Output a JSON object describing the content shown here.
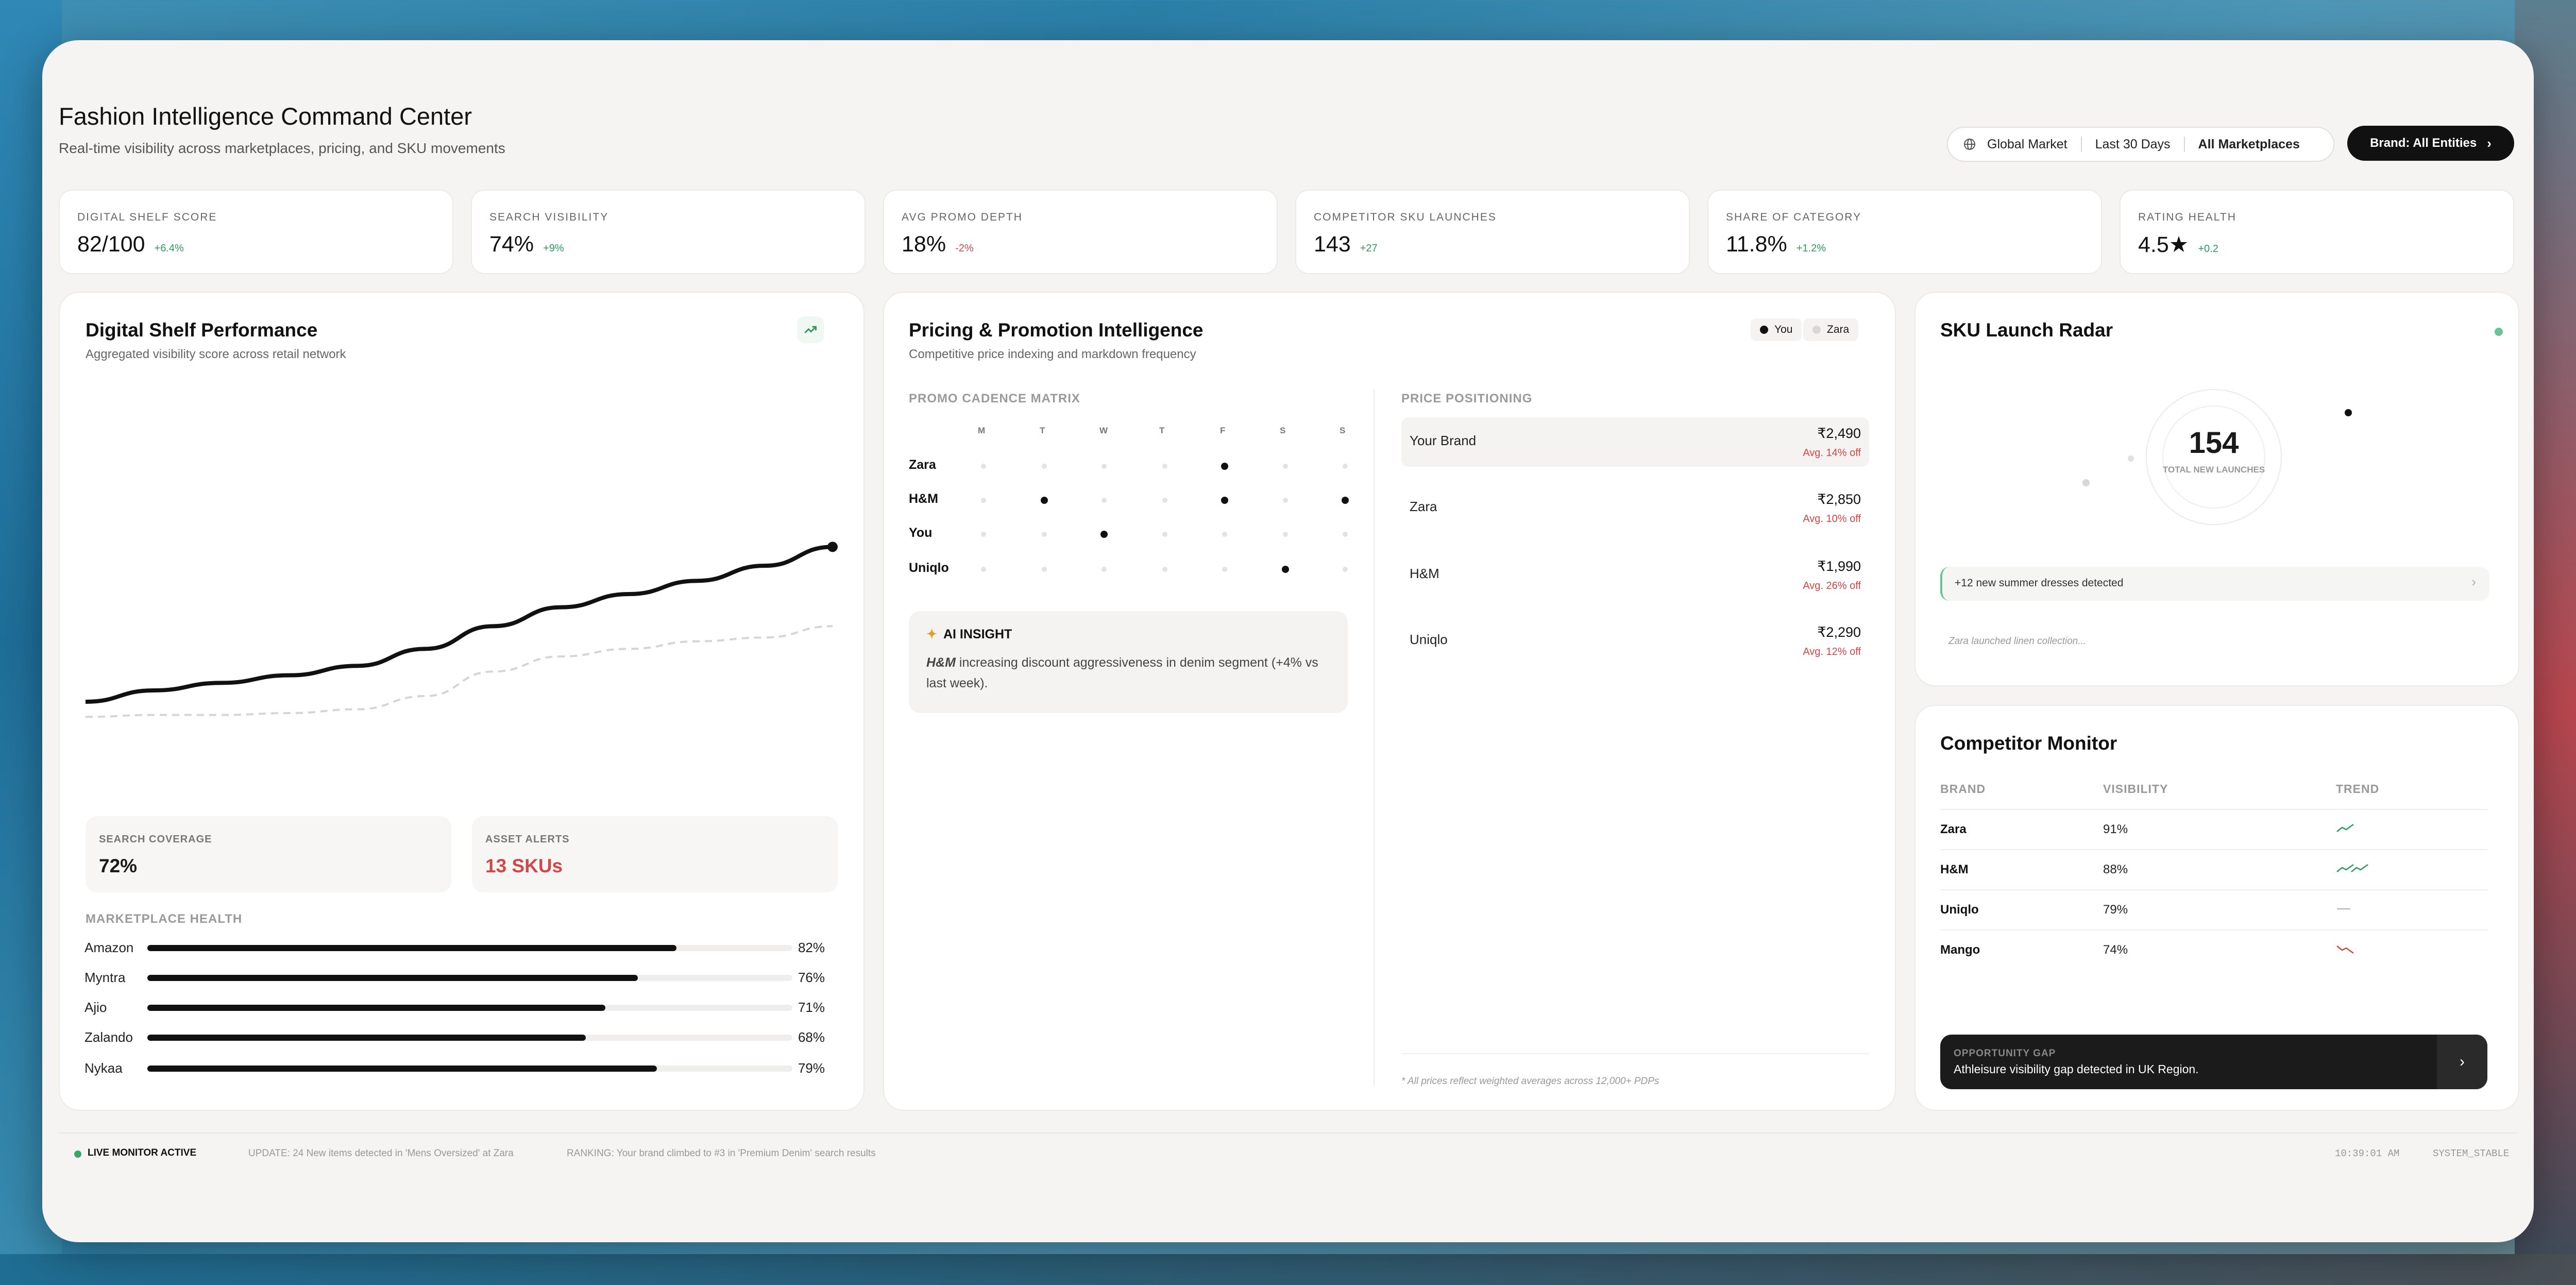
{
  "header": {
    "title": "Fashion Intelligence Command Center",
    "subtitle": "Real-time visibility across marketplaces, pricing, and SKU movements",
    "filters": [
      "Global Market",
      "Last 30 Days",
      "All Marketplaces"
    ],
    "brand_button": "Brand: All Entities"
  },
  "kpis": [
    {
      "label": "DIGITAL SHELF SCORE",
      "value": "82/100",
      "delta": "+6.4%",
      "trend": "up"
    },
    {
      "label": "SEARCH VISIBILITY",
      "value": "74%",
      "delta": "+9%",
      "trend": "up"
    },
    {
      "label": "AVG PROMO DEPTH",
      "value": "18%",
      "delta": "-2%",
      "trend": "down"
    },
    {
      "label": "COMPETITOR SKU LAUNCHES",
      "value": "143",
      "delta": "+27",
      "trend": "up"
    },
    {
      "label": "SHARE OF CATEGORY",
      "value": "11.8%",
      "delta": "+1.2%",
      "trend": "up"
    },
    {
      "label": "RATING HEALTH",
      "value": "4.5★",
      "delta": "+0.2",
      "trend": "up"
    }
  ],
  "shelf": {
    "title": "Digital Shelf Performance",
    "subtitle": "Aggregated visibility score across retail network",
    "chart_data": {
      "type": "line",
      "title": "",
      "series": [
        {
          "values": [
            18,
            24,
            28,
            32,
            37,
            46,
            58,
            68,
            75,
            82,
            90,
            100
          ],
          "style": "solid"
        },
        {
          "values": [
            10,
            11,
            11,
            12,
            14,
            21,
            34,
            42,
            46,
            50,
            52,
            58
          ],
          "style": "dashed"
        }
      ],
      "ylim": [
        0,
        180
      ],
      "grid": false
    },
    "search_coverage": {
      "label": "SEARCH COVERAGE",
      "value": "72%"
    },
    "asset_alerts": {
      "label": "ASSET ALERTS",
      "value": "13 SKUs"
    },
    "marketplace_label": "MARKETPLACE HEALTH",
    "marketplaces": [
      {
        "name": "Amazon",
        "pct": "82%",
        "value": 82
      },
      {
        "name": "Myntra",
        "pct": "76%",
        "value": 76
      },
      {
        "name": "Ajio",
        "pct": "71%",
        "value": 71
      },
      {
        "name": "Zalando",
        "pct": "68%",
        "value": 68
      },
      {
        "name": "Nykaa",
        "pct": "79%",
        "value": 79
      }
    ]
  },
  "pricing": {
    "title": "Pricing & Promotion Intelligence",
    "subtitle": "Competitive price indexing and markdown frequency",
    "legend": [
      "You",
      "Zara"
    ],
    "matrix_label": "PROMO CADENCE MATRIX",
    "days": [
      "M",
      "T",
      "W",
      "T",
      "F",
      "S",
      "S"
    ],
    "brands": [
      "Zara",
      "H&M",
      "You",
      "Uniqlo"
    ],
    "promo_days": [
      [
        4
      ],
      [
        1,
        4,
        6
      ],
      [
        2
      ],
      [
        5
      ]
    ],
    "insight_title": "AI INSIGHT",
    "insight_brand": "H&M",
    "insight_text": " increasing discount aggressiveness in denim segment (+4% vs last week).",
    "positioning_label": "PRICE POSITIONING",
    "prices": [
      {
        "brand": "Your Brand",
        "price": "₹2,490",
        "discount": "Avg. 14% off"
      },
      {
        "brand": "Zara",
        "price": "₹2,850",
        "discount": "Avg. 10% off"
      },
      {
        "brand": "H&M",
        "price": "₹1,990",
        "discount": "Avg. 26% off"
      },
      {
        "brand": "Uniqlo",
        "price": "₹2,290",
        "discount": "Avg. 12% off"
      }
    ],
    "footnote": "* All prices reflect weighted averages across 12,000+ PDPs"
  },
  "radar": {
    "title": "SKU Launch Radar",
    "count": "154",
    "count_label": "TOTAL NEW LAUNCHES",
    "alert": "+12 new summer dresses detected",
    "feed": "Zara launched linen collection..."
  },
  "competitors": {
    "title": "Competitor Monitor",
    "headers": [
      "BRAND",
      "VISIBILITY",
      "TREND"
    ],
    "rows": [
      {
        "brand": "Zara",
        "visibility": "91%",
        "trend": "up"
      },
      {
        "brand": "H&M",
        "visibility": "88%",
        "trend": "up-strong"
      },
      {
        "brand": "Uniqlo",
        "visibility": "79%",
        "trend": "flat"
      },
      {
        "brand": "Mango",
        "visibility": "74%",
        "trend": "down"
      }
    ],
    "opportunity_label": "OPPORTUNITY GAP",
    "opportunity_text": "Athleisure visibility gap detected in UK Region."
  },
  "status": {
    "live": "LIVE MONITOR ACTIVE",
    "ticker": [
      "UPDATE: 24 New items detected in 'Mens Oversized' at Zara",
      "RANKING: Your brand climbed to #3 in 'Premium Denim' search results"
    ],
    "time": "10:39:01 AM",
    "system": "SYSTEM_STABLE"
  },
  "colors": {
    "positive": "#2e9a5c",
    "negative": "#d04848",
    "accent": "#111111",
    "live": "#3aa56a"
  }
}
